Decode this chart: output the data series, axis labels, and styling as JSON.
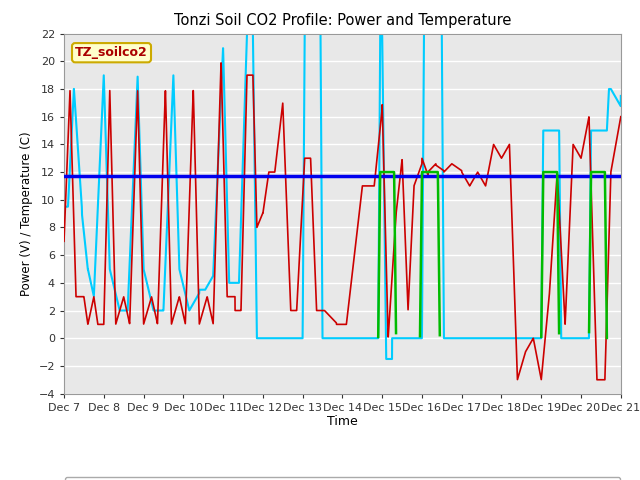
{
  "title": "Tonzi Soil CO2 Profile: Power and Temperature",
  "ylabel": "Power (V) / Temperature (C)",
  "xlabel": "Time",
  "ylim": [
    -4,
    22
  ],
  "yticks": [
    -4,
    -2,
    0,
    2,
    4,
    6,
    8,
    10,
    12,
    14,
    16,
    18,
    20,
    22
  ],
  "fig_bg": "#ffffff",
  "plot_bg": "#e8e8e8",
  "grid_color": "#ffffff",
  "label_box": "TZ_soilco2",
  "label_box_bg": "#ffffcc",
  "label_box_border": "#ccaa00",
  "label_box_text": "#aa0000",
  "cr23x_voltage_color": "#0000ee",
  "cr23x_temp_color": "#cc0000",
  "cr10x_voltage_color": "#00bb00",
  "cr10x_temp_color": "#00ccff",
  "cr23x_voltage_value": 11.7,
  "xtick_labels": [
    "Dec 7",
    "Dec 8",
    "Dec 9",
    "Dec 10",
    "Dec 11",
    "Dec 12",
    "Dec 13",
    "Dec 14",
    "Dec 15",
    "Dec 16",
    "Dec 17",
    "Dec 18",
    "Dec 19",
    "Dec 20",
    "Dec 21"
  ],
  "xtick_positions": [
    7,
    8,
    9,
    10,
    11,
    12,
    13,
    14,
    15,
    16,
    17,
    18,
    19,
    20,
    21
  ]
}
